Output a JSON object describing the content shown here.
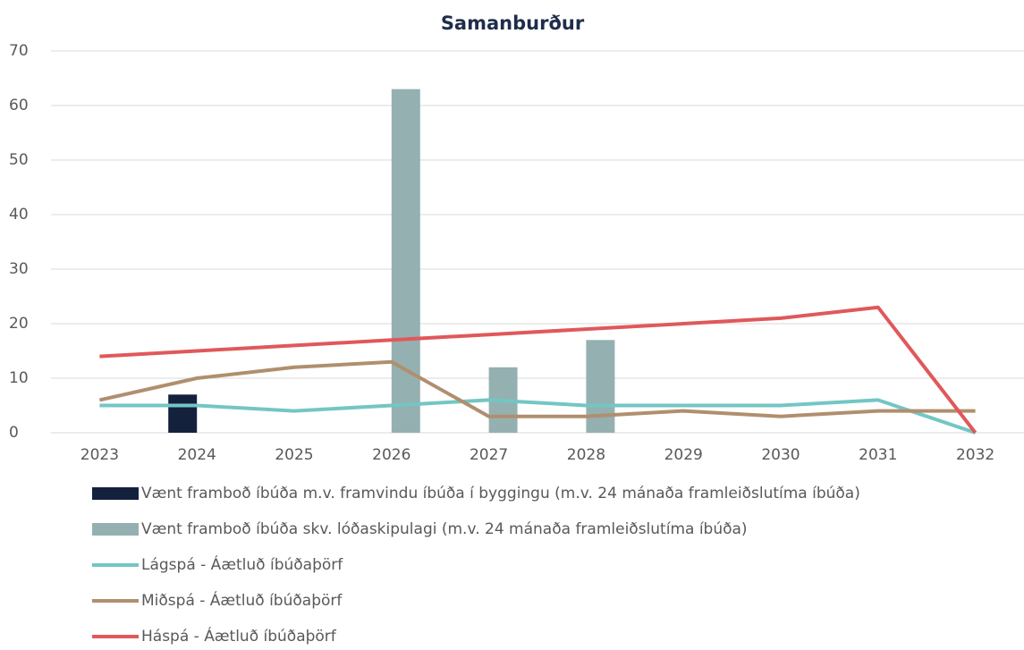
{
  "chart_data": {
    "type": "combo",
    "title": "Samanburður",
    "categories": [
      "2023",
      "2024",
      "2025",
      "2026",
      "2027",
      "2028",
      "2029",
      "2030",
      "2031",
      "2032"
    ],
    "series": [
      {
        "name": "Vænt framboð íbúða m.v. framvindu íbúða í byggingu (m.v. 24 mánaða framleiðslutíma íbúða)",
        "type": "bar",
        "color": "#14213d",
        "values": [
          null,
          7,
          null,
          null,
          null,
          null,
          null,
          null,
          null,
          null
        ]
      },
      {
        "name": "Vænt framboð íbúða skv. lóðaskipulagi (m.v. 24 mánaða framleiðslutíma íbúða)",
        "type": "bar",
        "color": "#95b0b0",
        "values": [
          null,
          null,
          null,
          63,
          12,
          17,
          null,
          null,
          null,
          null
        ]
      },
      {
        "name": "Lágspá - Áætluð íbúðaþörf",
        "type": "line",
        "color": "#73c6c4",
        "values": [
          5,
          5,
          4,
          5,
          6,
          5,
          5,
          5,
          6,
          0
        ]
      },
      {
        "name": "Miðspá - Áætluð íbúðaþörf",
        "type": "line",
        "color": "#b08f6e",
        "values": [
          6,
          10,
          12,
          13,
          3,
          3,
          4,
          3,
          4,
          4
        ]
      },
      {
        "name": "Háspá - Áætluð íbúðaþörf",
        "type": "line",
        "color": "#e0585b",
        "values": [
          14,
          15,
          16,
          17,
          18,
          19,
          20,
          21,
          23,
          0
        ]
      }
    ],
    "ylim": [
      0,
      70
    ],
    "yticks": [
      0,
      10,
      20,
      30,
      40,
      50,
      60,
      70
    ],
    "grid": true,
    "legend": "bottom"
  }
}
